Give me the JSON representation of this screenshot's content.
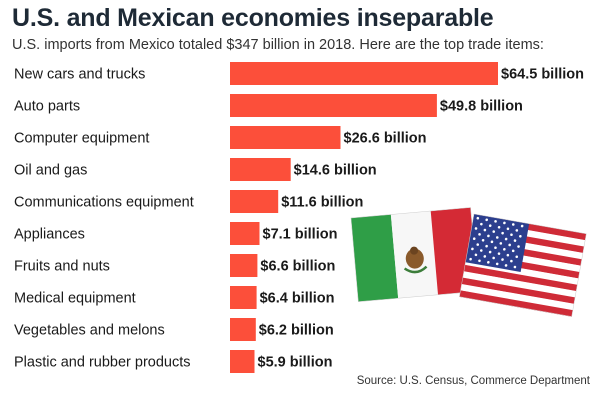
{
  "title": "U.S. and Mexican economies inseparable",
  "subtitle": "U.S. imports from Mexico totaled $347 billion in 2018. Here are the top trade items:",
  "source": "Source: U.S. Census, Commerce Department",
  "colors": {
    "bar": "#fc4f3a",
    "mexico_green": "#2f9e47",
    "mexico_red": "#d42a35",
    "usa_red": "#cf2b37",
    "usa_blue": "#2c3f8e"
  },
  "chart_data": {
    "type": "bar",
    "orientation": "horizontal",
    "categories": [
      "New cars and trucks",
      "Auto parts",
      "Computer equipment",
      "Oil and gas",
      "Communications equipment",
      "Appliances",
      "Fruits and nuts",
      "Medical equipment",
      "Vegetables and melons",
      "Plastic and rubber products"
    ],
    "values": [
      64.5,
      49.8,
      26.6,
      14.6,
      11.6,
      7.1,
      6.6,
      6.4,
      6.2,
      5.9
    ],
    "value_labels": [
      "$64.5 billion",
      "$49.8 billion",
      "$26.6 billion",
      "$14.6 billion",
      "$11.6 billion",
      "$7.1 billion",
      "$6.6 billion",
      "$6.4 billion",
      "$6.2 billion",
      "$5.9 billion"
    ],
    "grid": false,
    "legend": "none"
  },
  "decorations": {
    "flags": [
      "mexico-flag-icon",
      "usa-flag-icon"
    ]
  }
}
